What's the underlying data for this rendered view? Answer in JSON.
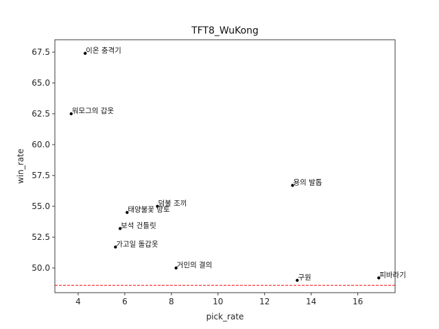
{
  "chart_data": {
    "type": "scatter",
    "title": "TFT8_WuKong",
    "xlabel": "pick_rate",
    "ylabel": "win_rate",
    "xlim": [
      3.0,
      17.6
    ],
    "ylim": [
      48.0,
      68.5
    ],
    "xticks": [
      4,
      6,
      8,
      10,
      12,
      14,
      16
    ],
    "xtick_labels": [
      "4",
      "6",
      "8",
      "10",
      "12",
      "14",
      "16"
    ],
    "yticks": [
      50.0,
      52.5,
      55.0,
      57.5,
      60.0,
      62.5,
      65.0,
      67.5
    ],
    "ytick_labels": [
      "50.0",
      "52.5",
      "55.0",
      "57.5",
      "60.0",
      "62.5",
      "65.0",
      "67.5"
    ],
    "grid": false,
    "reference_line": {
      "y": 48.6,
      "color": "#ff0000",
      "style": "dashed"
    },
    "point_color": "#000000",
    "points": [
      {
        "label": "이온 충격기",
        "x": 4.3,
        "y": 67.4
      },
      {
        "label": "워모그의 갑옷",
        "x": 3.7,
        "y": 62.5
      },
      {
        "label": "용의 발톱",
        "x": 13.2,
        "y": 56.7
      },
      {
        "label": "덤불 조끼",
        "x": 7.4,
        "y": 55.0
      },
      {
        "label": "태양불꽃 망토",
        "x": 6.1,
        "y": 54.5
      },
      {
        "label": "보석 건틀릿",
        "x": 5.8,
        "y": 53.2
      },
      {
        "label": "가고일 돌갑옷",
        "x": 5.6,
        "y": 51.7
      },
      {
        "label": "거인의 결의",
        "x": 8.2,
        "y": 50.0
      },
      {
        "label": "구원",
        "x": 13.4,
        "y": 49.0
      },
      {
        "label": "피바라기",
        "x": 16.9,
        "y": 49.2
      }
    ]
  }
}
